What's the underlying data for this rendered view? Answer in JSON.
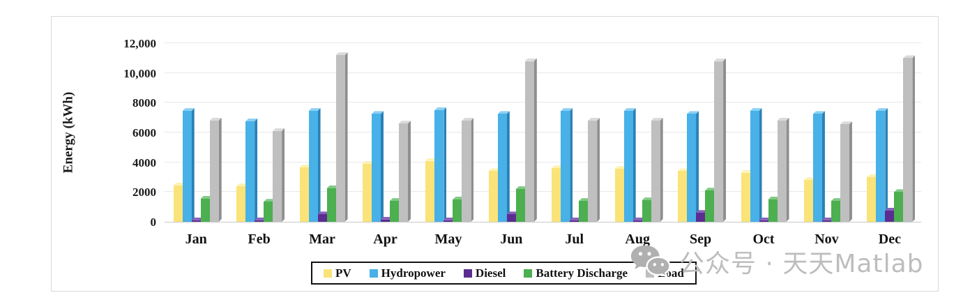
{
  "chart_data": {
    "type": "bar",
    "title": "",
    "xlabel": "",
    "ylabel": "Energy (kWh)",
    "ylim": [
      0,
      12000
    ],
    "ytick_values": [
      0,
      2000,
      4000,
      6000,
      8000,
      10000,
      12000
    ],
    "ytick_labels": [
      "0",
      "2000",
      "4000",
      "6000",
      "8000",
      "10,000",
      "12,000"
    ],
    "grid": true,
    "legend_position": "bottom",
    "categories": [
      "Jan",
      "Feb",
      "Mar",
      "Apr",
      "May",
      "Jun",
      "Jul",
      "Aug",
      "Sep",
      "Oct",
      "Nov",
      "Dec"
    ],
    "series": [
      {
        "name": "PV",
        "color": "#fae378",
        "color_light": "#fdf2b0",
        "color_dark": "#d9be5a",
        "values": [
          2450,
          2400,
          3650,
          3900,
          4100,
          3400,
          3600,
          3550,
          3400,
          3300,
          2800,
          3000
        ]
      },
      {
        "name": "Hydropower",
        "color": "#47b1e8",
        "color_light": "#8bd0f4",
        "color_dark": "#2a81b5",
        "values": [
          7450,
          6750,
          7450,
          7250,
          7500,
          7250,
          7450,
          7450,
          7250,
          7450,
          7250,
          7450
        ]
      },
      {
        "name": "Diesel",
        "color": "#5c2d90",
        "color_light": "#8a61bc",
        "color_dark": "#3e1d64",
        "values": [
          100,
          100,
          500,
          150,
          100,
          500,
          100,
          100,
          600,
          100,
          100,
          750
        ]
      },
      {
        "name": "Battery Discharge",
        "color": "#4caf50",
        "color_light": "#82ca85",
        "color_dark": "#357d39",
        "values": [
          1550,
          1350,
          2250,
          1400,
          1500,
          2200,
          1400,
          1450,
          2100,
          1500,
          1400,
          2000
        ]
      },
      {
        "name": "Load",
        "color": "#bfbfbf",
        "color_light": "#dadada",
        "color_dark": "#8e8e8e",
        "values": [
          6800,
          6100,
          11200,
          6600,
          6800,
          10800,
          6800,
          6800,
          10800,
          6800,
          6550,
          11000
        ]
      }
    ]
  },
  "style_colors": {
    "gridline": "#e8e8e8",
    "axis_line": "#c9c9c9",
    "frame_border": "#d9d9d9",
    "text": "#1a1a1a",
    "watermark": "#bdbdbd"
  },
  "watermark": {
    "icon": "wechat-icon",
    "text": "公众号 · 天天Matlab"
  }
}
